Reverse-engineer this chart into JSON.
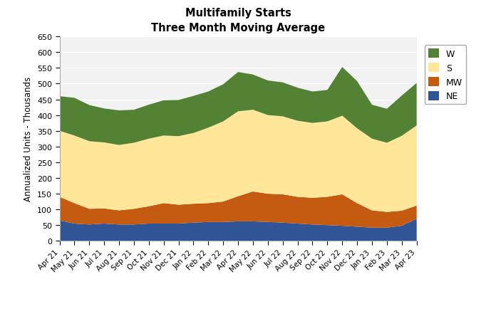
{
  "title": "Multifamily Starts\nThree Month Moving Average",
  "ylabel": "Annualized Units - Thousands",
  "ylim": [
    0,
    650
  ],
  "yticks": [
    0,
    50,
    100,
    150,
    200,
    250,
    300,
    350,
    400,
    450,
    500,
    550,
    600,
    650
  ],
  "categories": [
    "Apr 21",
    "May 21",
    "Jun 21",
    "Jul 21",
    "Aug 21",
    "Sep 21",
    "Oct 21",
    "Nov 21",
    "Dec 21",
    "Jan 22",
    "Feb 22",
    "Mar 22",
    "Apr 22",
    "May 22",
    "Jun 22",
    "Jul 22",
    "Aug 22",
    "Sep 22",
    "Oct 22",
    "Nov 22",
    "Dec 22",
    "Jan 23",
    "Feb 23",
    "Mar 23",
    "Apr 23"
  ],
  "NE": [
    65,
    55,
    52,
    55,
    52,
    52,
    55,
    55,
    55,
    58,
    60,
    60,
    62,
    62,
    60,
    58,
    55,
    52,
    50,
    48,
    45,
    42,
    42,
    48,
    70
  ],
  "MW": [
    75,
    65,
    50,
    48,
    45,
    50,
    55,
    65,
    60,
    60,
    60,
    65,
    80,
    95,
    90,
    90,
    85,
    85,
    90,
    100,
    75,
    55,
    50,
    48,
    42
  ],
  "S": [
    210,
    215,
    215,
    210,
    208,
    210,
    215,
    215,
    218,
    225,
    240,
    255,
    270,
    260,
    250,
    248,
    242,
    238,
    240,
    250,
    238,
    228,
    220,
    238,
    255
  ],
  "W": [
    110,
    120,
    115,
    108,
    110,
    105,
    108,
    112,
    115,
    118,
    115,
    118,
    125,
    112,
    110,
    108,
    105,
    100,
    100,
    155,
    150,
    108,
    108,
    128,
    135
  ],
  "colors": {
    "NE": "#2F5597",
    "MW": "#C55A11",
    "S": "#FFE699",
    "W": "#548235"
  },
  "legend_colors": {
    "W": "#548235",
    "S": "#FFE699",
    "MW": "#C55A11",
    "NE": "#2F5597"
  },
  "background_color": "#FFFFFF",
  "plot_bg_color": "#F2F2F2",
  "grid_color": "#FFFFFF"
}
